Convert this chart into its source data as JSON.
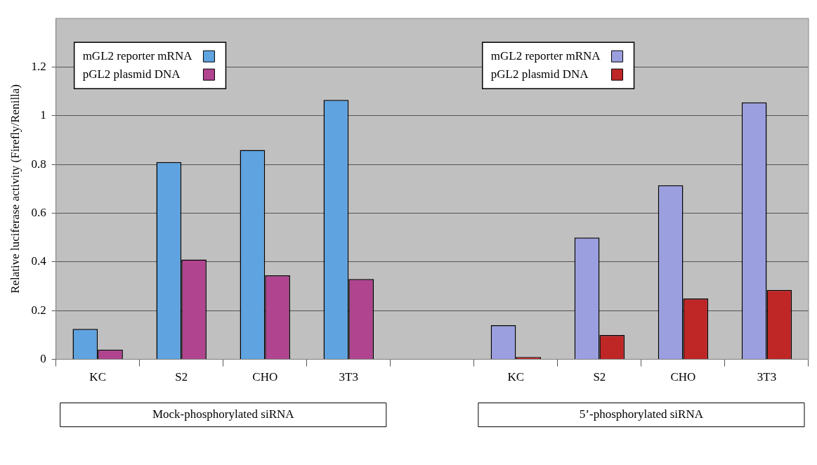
{
  "chart_data": {
    "type": "bar",
    "ylabel": "Relative luciferase activity (Firefly/Renilla)",
    "categories": [
      "KC",
      "S2",
      "CHO",
      "3T3",
      null,
      "KC",
      "S2",
      "CHO",
      "3T3"
    ],
    "series": [
      {
        "name": "mGL2 reporter mRNA",
        "color": "#5fa3e0",
        "values": [
          0.125,
          0.81,
          0.86,
          1.065,
          null,
          null,
          null,
          null,
          null
        ]
      },
      {
        "name": "pGL2 plasmid DNA",
        "color": "#b0448f",
        "values": [
          0.04,
          0.41,
          0.345,
          0.33,
          null,
          null,
          null,
          null,
          null
        ]
      },
      {
        "name": "mGL2 reporter mRNA",
        "color": "#9b9fe0",
        "values": [
          null,
          null,
          null,
          null,
          null,
          0.14,
          0.5,
          0.715,
          1.055
        ]
      },
      {
        "name": "pGL2 plasmid DNA",
        "color": "#bf2626",
        "values": [
          null,
          null,
          null,
          null,
          null,
          0.01,
          0.1,
          0.25,
          0.285
        ]
      }
    ],
    "ylim": [
      0,
      1.4
    ],
    "yticks": [
      0,
      0.2,
      0.4,
      0.6,
      0.8,
      1,
      1.2
    ],
    "grid": "y",
    "legend": "top",
    "annotations": [
      "Mock-phosphorylated siRNA",
      "5’-phosphorylated siRNA"
    ]
  }
}
